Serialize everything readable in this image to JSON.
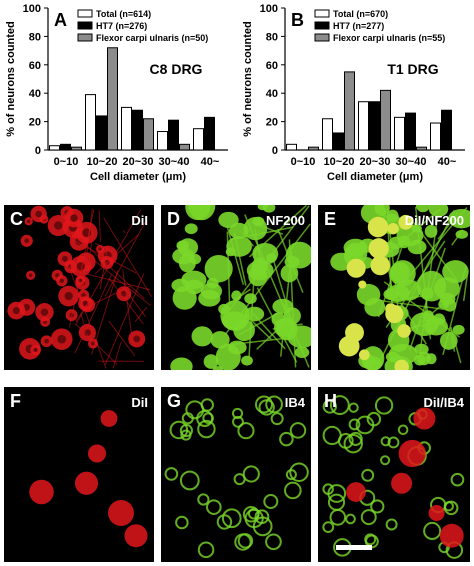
{
  "chart_data": [
    {
      "type": "bar",
      "panel_letter": "A",
      "title": "C8 DRG",
      "ylabel": "% of neurons counted",
      "xlabel": "Cell diameter (μm)",
      "ylim": [
        0,
        100
      ],
      "yticks": [
        "0",
        "20",
        "40",
        "60",
        "80",
        "100"
      ],
      "categories": [
        "0~10",
        "10~20",
        "20~30",
        "30~40",
        "40~"
      ],
      "legend_position": "top-right",
      "series": [
        {
          "name": "Total (n=614)",
          "color": "#ffffff",
          "values": [
            3,
            39,
            30,
            13,
            15
          ]
        },
        {
          "name": "HT7 (n=276)",
          "color": "#000000",
          "values": [
            4,
            24,
            28,
            21,
            23
          ]
        },
        {
          "name": "Flexor carpi ulnaris (n=50)",
          "color": "#8c8c8c",
          "values": [
            2,
            72,
            22,
            4,
            0
          ]
        }
      ]
    },
    {
      "type": "bar",
      "panel_letter": "B",
      "title": "T1 DRG",
      "ylabel": "% of neurons counted",
      "xlabel": "Cell diameter (μm)",
      "ylim": [
        0,
        100
      ],
      "yticks": [
        "0",
        "20",
        "40",
        "60",
        "80",
        "100"
      ],
      "categories": [
        "0~10",
        "10~20",
        "20~30",
        "30~40",
        "40~"
      ],
      "legend_position": "top-right",
      "series": [
        {
          "name": "Total (n=670)",
          "color": "#ffffff",
          "values": [
            4,
            22,
            34,
            23,
            19
          ]
        },
        {
          "name": "HT7 (n=277)",
          "color": "#000000",
          "values": [
            0,
            12,
            34,
            26,
            28
          ]
        },
        {
          "name": "Flexor carpi ulnaris (n=55)",
          "color": "#8c8c8c",
          "values": [
            2,
            55,
            42,
            2,
            0
          ]
        }
      ]
    }
  ],
  "image_panels": [
    {
      "letter": "C",
      "label": "DiI",
      "stain": "red"
    },
    {
      "letter": "D",
      "label": "NF200",
      "stain": "green"
    },
    {
      "letter": "E",
      "label": "DiI/NF200",
      "stain": "merge"
    },
    {
      "letter": "F",
      "label": "DiI",
      "stain": "red-sparse"
    },
    {
      "letter": "G",
      "label": "IB4",
      "stain": "green-sparse"
    },
    {
      "letter": "H",
      "label": "DiI/IB4",
      "stain": "merge-sparse"
    }
  ]
}
